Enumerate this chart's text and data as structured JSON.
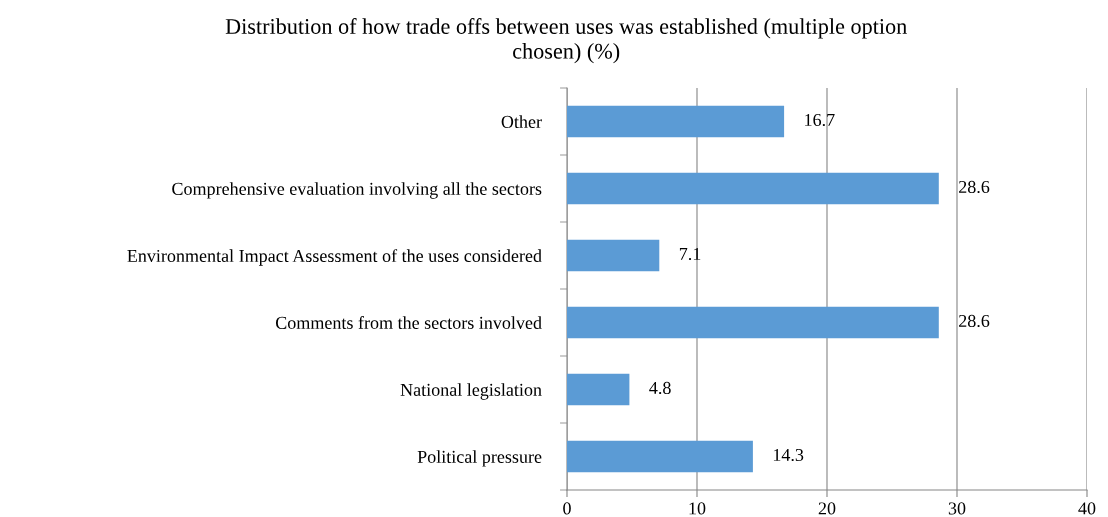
{
  "chart_data": {
    "type": "bar",
    "orientation": "horizontal",
    "title": "Distribution of how trade offs between uses was established (multiple option\nchosen) (%)",
    "categories": [
      "Other",
      "Comprehensive evaluation involving all the sectors",
      "Environmental Impact Assessment of the uses considered",
      "Comments from the sectors involved",
      "National legislation",
      "Political pressure"
    ],
    "values": [
      16.7,
      28.6,
      7.1,
      28.6,
      4.8,
      14.3
    ],
    "color": "#5b9bd5",
    "xlim": [
      0,
      40
    ],
    "xticks": [
      0,
      10,
      20,
      30,
      40
    ],
    "grid": "x",
    "data_labels": true
  }
}
